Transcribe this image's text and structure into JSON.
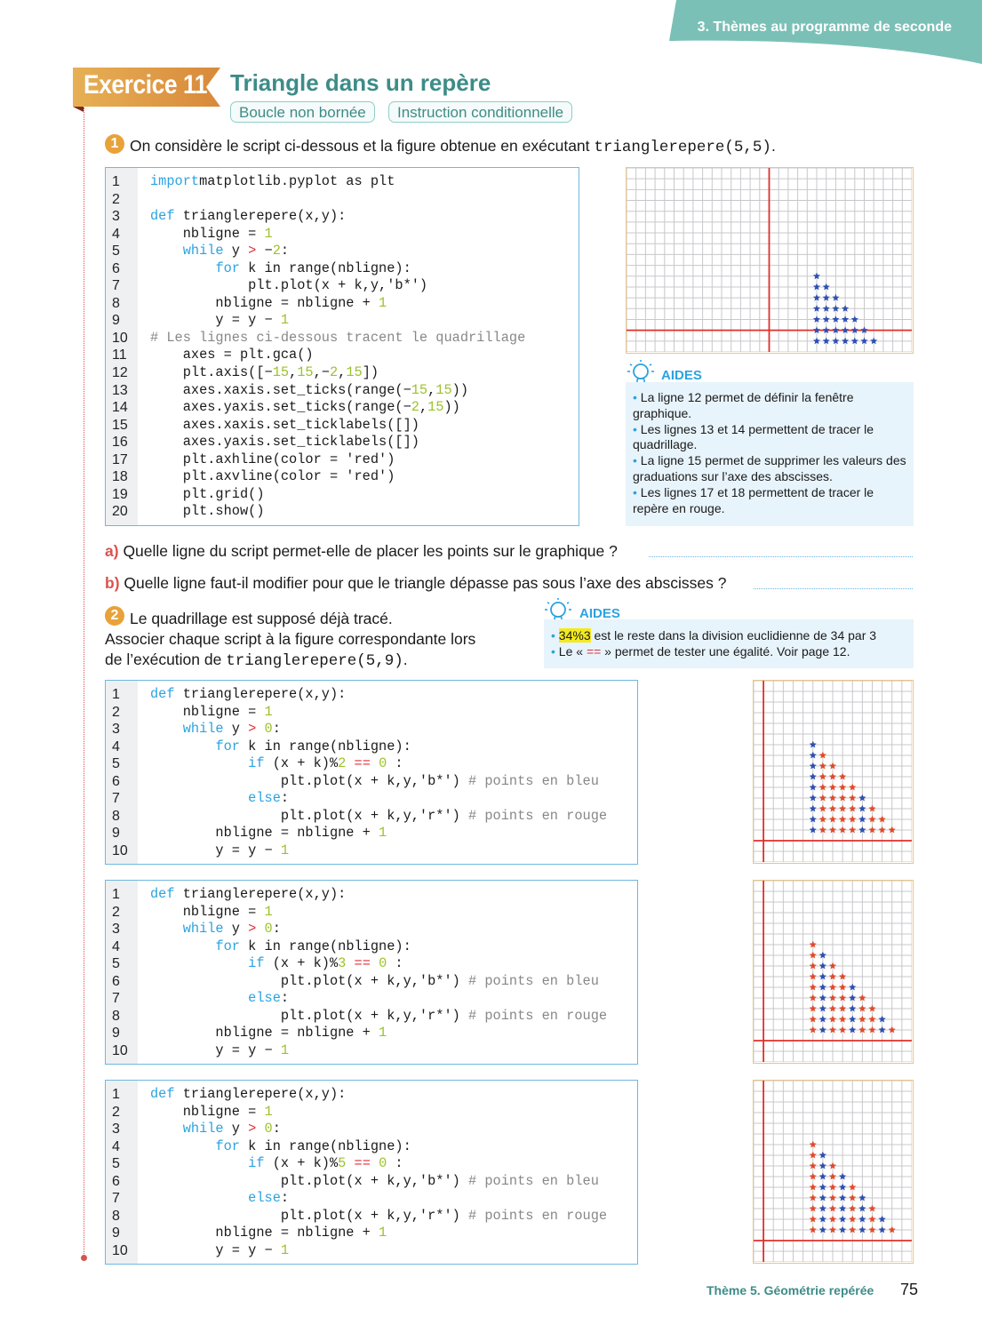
{
  "header": {
    "section": "3. Thèmes au programme de seconde",
    "color": "#7bc0b6"
  },
  "exercise": {
    "badge": "Exercice 11",
    "title": "Triangle dans un repère",
    "tags": [
      "Boucle non bornée",
      "Instruction conditionnelle"
    ]
  },
  "part1": {
    "number": "1",
    "intro": "On considère le script ci-dessous et la figure obtenue en exécutant ",
    "intro_code": "trianglerepere(5,5)",
    "intro_end": ".",
    "code": [
      [
        [
          "kw",
          "import"
        ],
        [
          "",
          "matplotlib.pyplot as plt"
        ]
      ],
      [],
      [
        [
          "kw",
          "def"
        ],
        [
          "",
          " trianglerepere(x,y):"
        ]
      ],
      [
        [
          "",
          "    nbligne = "
        ],
        [
          "num",
          "1"
        ]
      ],
      [
        [
          "",
          "    "
        ],
        [
          "kw",
          "while"
        ],
        [
          "",
          " y "
        ],
        [
          "op",
          ">"
        ],
        [
          "",
          " −"
        ],
        [
          "num",
          "2"
        ],
        [
          "",
          ":"
        ]
      ],
      [
        [
          "",
          "        "
        ],
        [
          "kw",
          "for"
        ],
        [
          "",
          " k in range(nbligne):"
        ]
      ],
      [
        [
          "",
          "            plt.plot(x + k,y,'b*')"
        ]
      ],
      [
        [
          "",
          "        nbligne = nbligne + "
        ],
        [
          "num",
          "1"
        ]
      ],
      [
        [
          "",
          "        y = y − "
        ],
        [
          "num",
          "1"
        ]
      ],
      [
        [
          "cm",
          "# Les lignes ci-dessous tracent le quadrillage"
        ]
      ],
      [
        [
          "",
          "    axes = plt.gca()"
        ]
      ],
      [
        [
          "",
          "    plt.axis([−"
        ],
        [
          "num",
          "15"
        ],
        [
          "",
          ","
        ],
        [
          "num",
          "15"
        ],
        [
          "",
          ",−"
        ],
        [
          "num",
          "2"
        ],
        [
          "",
          ","
        ],
        [
          "num",
          "15"
        ],
        [
          "",
          "])"
        ]
      ],
      [
        [
          "",
          "    axes.xaxis.set_ticks(range(−"
        ],
        [
          "num",
          "15"
        ],
        [
          "",
          ","
        ],
        [
          "num",
          "15"
        ],
        [
          "",
          "))"
        ]
      ],
      [
        [
          "",
          "    axes.yaxis.set_ticks(range(−"
        ],
        [
          "num",
          "2"
        ],
        [
          "",
          ","
        ],
        [
          "num",
          "15"
        ],
        [
          "",
          "))"
        ]
      ],
      [
        [
          "",
          "    axes.xaxis.set_ticklabels([])"
        ]
      ],
      [
        [
          "",
          "    axes.yaxis.set_ticklabels([])"
        ]
      ],
      [
        [
          "",
          "    plt.axhline(color = 'red')"
        ]
      ],
      [
        [
          "",
          "    plt.axvline(color = 'red')"
        ]
      ],
      [
        [
          "",
          "    plt.grid()"
        ]
      ],
      [
        [
          "",
          "    plt.show()"
        ]
      ]
    ],
    "figure": {
      "xlim": [
        -15,
        15
      ],
      "ylim": [
        -2,
        15
      ],
      "x_start": 5,
      "y_top": 5,
      "y_bottom": -1,
      "blue_modulus": 1
    },
    "aides": {
      "label": "AIDES",
      "items": [
        "La ligne 12 permet de définir la fenêtre graphique.",
        "Les lignes 13 et 14 permettent de tracer le quadrillage.",
        "La ligne 15 permet de supprimer les valeurs des graduations sur l’axe des abscisses.",
        "Les lignes 17 et 18 permettent de tracer le repère en rouge."
      ]
    },
    "qa": {
      "letter": "a)",
      "text": "Quelle ligne du script permet-elle de placer les points sur le graphique ?"
    },
    "qb": {
      "letter": "b)",
      "text": "Quelle ligne faut-il modifier pour que le triangle dépasse pas sous l’axe des abscisses ?"
    }
  },
  "part2": {
    "number": "2",
    "line1": "Le quadrillage est supposé déjà tracé.",
    "line2": "Associer chaque script à la figure correspondante lors",
    "line3": "de l’exécution de ",
    "line3_code": "trianglerepere(5,9)",
    "line3_end": ".",
    "aides": {
      "label": "AIDES",
      "item1_hl": "34%3",
      "item1": " est le reste dans la division euclidienne de 34 par 3",
      "item2_a": "Le « ",
      "item2_op": "==",
      "item2_b": " » permet de tester une égalité. Voir page 12."
    },
    "scripts": [
      {
        "modulus": "2"
      },
      {
        "modulus": "3"
      },
      {
        "modulus": "5"
      }
    ],
    "figures": [
      {
        "xlim": [
          -1,
          15
        ],
        "ylim": [
          -2,
          15
        ],
        "x_start": 5,
        "y_top": 9,
        "y_bottom": 1,
        "blue_modulus": 5
      },
      {
        "xlim": [
          -1,
          15
        ],
        "ylim": [
          -2,
          15
        ],
        "x_start": 5,
        "y_top": 9,
        "y_bottom": 1,
        "blue_modulus": 3
      },
      {
        "xlim": [
          -1,
          15
        ],
        "ylim": [
          -2,
          15
        ],
        "x_start": 5,
        "y_top": 9,
        "y_bottom": 1,
        "blue_modulus": 2
      }
    ]
  },
  "colors": {
    "blue_point": "#2e4fb0",
    "red_point": "#e04a2a",
    "axis": "#e0302a",
    "grid": "#c8c8cc",
    "teal": "#3d8c88",
    "accent": "#e8a23a"
  },
  "footer": {
    "theme": "Thème 5. Géométrie repérée",
    "page": "75"
  }
}
